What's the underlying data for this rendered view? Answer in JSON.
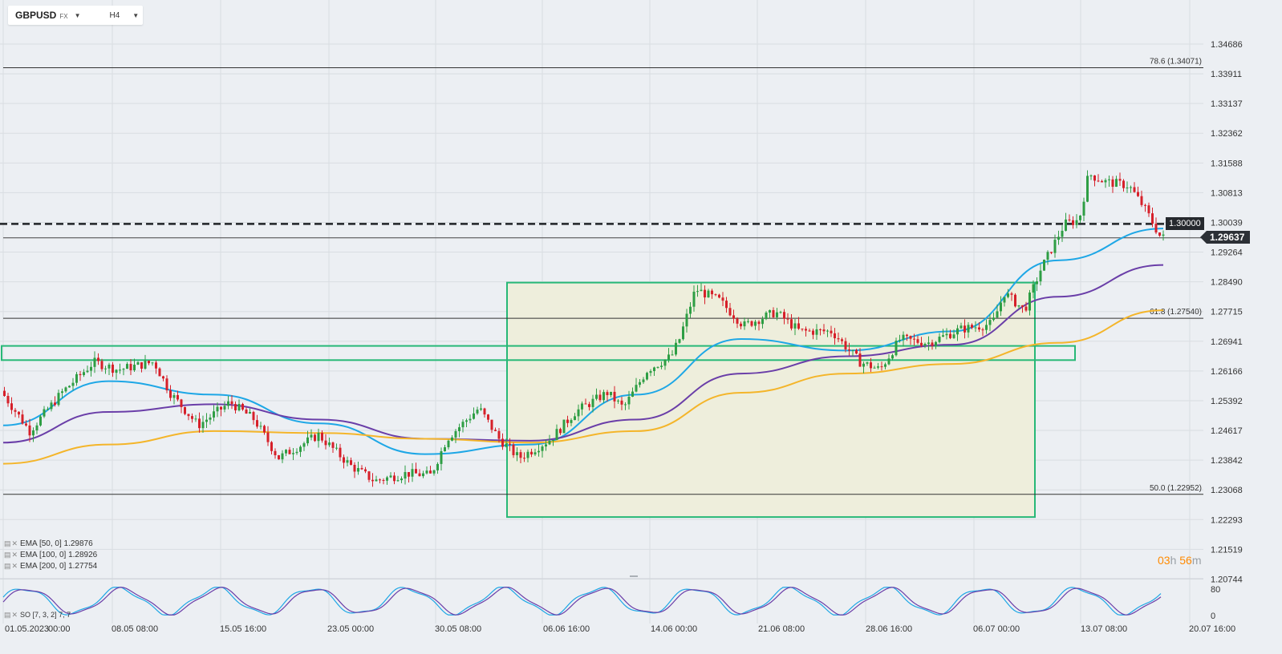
{
  "toolbar": {
    "symbol": "GBPUSD",
    "symbol_type": "FX",
    "timeframe": "H4",
    "caret": "▼"
  },
  "indicators": [
    {
      "label": "EMA [50, 0] 1.29876",
      "color": "#1ea7e6"
    },
    {
      "label": "EMA [100, 0] 1.28926",
      "color": "#6a3ea8"
    },
    {
      "label": "EMA [200, 0] 1.27754",
      "color": "#f4b52a"
    }
  ],
  "oscillator_label": "SO [7, 3, 2] 7, 7",
  "countdown": {
    "h": "03",
    "h_unit": "h",
    "m": "56",
    "m_unit": "m"
  },
  "price_axis": [
    "1.34686",
    "1.33911",
    "1.33137",
    "1.32362",
    "1.31588",
    "1.30813",
    "1.30039",
    "1.29264",
    "1.28490",
    "1.27715",
    "1.26941",
    "1.26166",
    "1.25392",
    "1.24617",
    "1.23842",
    "1.23068",
    "1.22293",
    "1.21519",
    "1.20744"
  ],
  "osc_axis": [
    "80",
    "0"
  ],
  "time_axis": [
    "01.05.2023",
    "00:00",
    "08.05 08:00",
    "15.05 16:00",
    "23.05 00:00",
    "30.05 08:00",
    "06.06 16:00",
    "14.06 00:00",
    "21.06 08:00",
    "28.06 16:00",
    "06.07 00:00",
    "13.07 08:00",
    "20.07 16:00"
  ],
  "levels": {
    "fib_786": "78.6 (1.34071)",
    "fib_618": "61.8 (1.27540)",
    "fib_500": "50.0 (1.22952)",
    "round_level": "1.30000",
    "last_price": "1.29637"
  },
  "colors": {
    "bull": "#2e9e44",
    "bear": "#d6202a",
    "box_border": "#27b877",
    "box_fill": "#eeeedc",
    "ema50": "#1ea7e6",
    "ema100": "#6a3ea8",
    "ema200": "#f4b52a",
    "countdown": "#ff8a00"
  },
  "chart_data": {
    "type": "candlestick",
    "series": [
      {
        "name": "EMA [50, 0]",
        "x": [
          "01.05.2023",
          "08.05",
          "15.05",
          "23.05",
          "30.05",
          "06.06",
          "14.06",
          "21.06",
          "28.06",
          "06.07",
          "13.07",
          "17.07"
        ],
        "values": [
          1.2475,
          1.259,
          1.2555,
          1.248,
          1.24,
          1.2425,
          1.2555,
          1.27,
          1.267,
          1.272,
          1.2905,
          1.2988
        ]
      },
      {
        "name": "EMA [100, 0]",
        "x": [
          "01.05.2023",
          "08.05",
          "15.05",
          "23.05",
          "30.05",
          "06.06",
          "14.06",
          "21.06",
          "28.06",
          "06.07",
          "13.07",
          "17.07"
        ],
        "values": [
          1.243,
          1.251,
          1.253,
          1.249,
          1.244,
          1.2435,
          1.249,
          1.261,
          1.2655,
          1.2685,
          1.281,
          1.2893
        ]
      },
      {
        "name": "EMA [200, 0]",
        "x": [
          "01.05.2023",
          "08.05",
          "15.05",
          "23.05",
          "30.05",
          "06.06",
          "14.06",
          "21.06",
          "28.06",
          "06.07",
          "13.07",
          "17.07"
        ],
        "values": [
          1.2375,
          1.2425,
          1.246,
          1.2455,
          1.244,
          1.243,
          1.246,
          1.256,
          1.261,
          1.2635,
          1.269,
          1.2775
        ]
      }
    ],
    "ylim": [
      1.2035,
      1.351
    ],
    "grid": true
  }
}
